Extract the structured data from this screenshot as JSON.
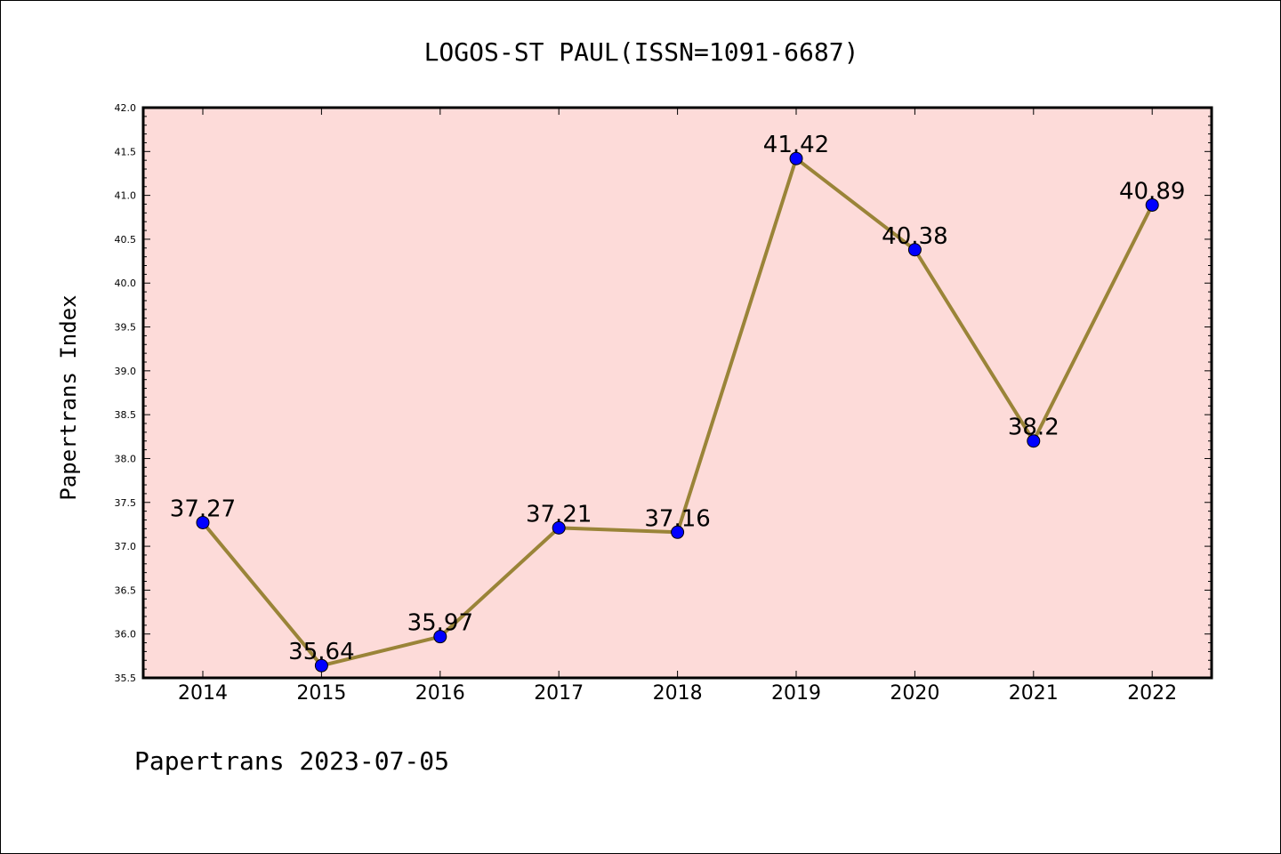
{
  "chart_data": {
    "type": "line",
    "title": "LOGOS-ST PAUL(ISSN=1091-6687)",
    "ylabel": "Papertrans Index",
    "xlabel": "",
    "categories": [
      "2014",
      "2015",
      "2016",
      "2017",
      "2018",
      "2019",
      "2020",
      "2021",
      "2022"
    ],
    "series": [
      {
        "values": [
          37.27,
          35.64,
          35.97,
          37.21,
          37.16,
          41.42,
          40.38,
          38.2,
          40.89
        ],
        "labels": [
          "37.27",
          "35.64",
          "35.97",
          "37.21",
          "37.16",
          "41.42",
          "40.38",
          "38.2",
          "40.89"
        ],
        "line_color": "#9a8438",
        "marker_color": "#0000ff"
      }
    ],
    "ylim": [
      35.5,
      42.0
    ],
    "yticks": [
      "35.5",
      "36.0",
      "36.5",
      "37.0",
      "37.5",
      "38.0",
      "38.5",
      "39.0",
      "39.5",
      "40.0",
      "40.5",
      "41.0",
      "41.5",
      "42.0"
    ],
    "grid": false,
    "plot_background": "#fddbd9"
  },
  "footer": "Papertrans 2023-07-05"
}
